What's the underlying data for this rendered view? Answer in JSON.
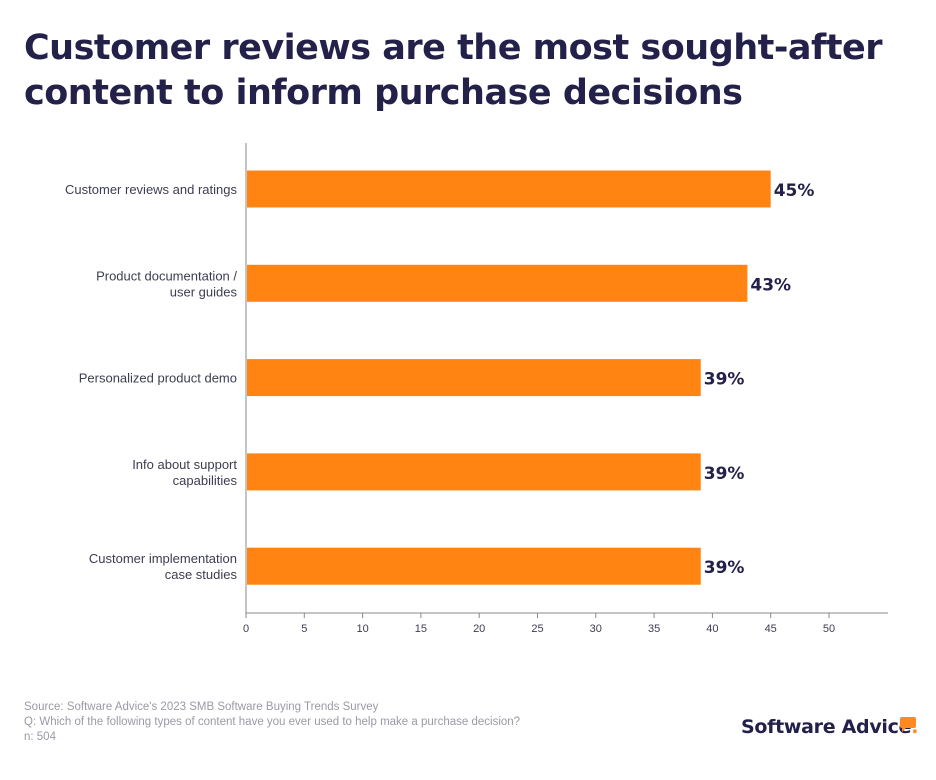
{
  "title_lines": [
    "Customer reviews are the most sought-after",
    "content to inform purchase decisions"
  ],
  "chart_data": {
    "type": "bar",
    "orientation": "horizontal",
    "title": "Customer reviews are the most sought-after content to inform purchase decisions",
    "categories": [
      [
        "Customer reviews and ratings"
      ],
      [
        "Product documentation /",
        "user guides"
      ],
      [
        "Personalized product demo"
      ],
      [
        "Info about support",
        "capabilities"
      ],
      [
        "Customer implementation",
        "case studies"
      ]
    ],
    "values": [
      45,
      43,
      39,
      39,
      39
    ],
    "value_labels": [
      "45%",
      "43%",
      "39%",
      "39%",
      "39%"
    ],
    "xlim": [
      0,
      55
    ],
    "xticks": [
      0,
      5,
      10,
      15,
      20,
      25,
      30,
      35,
      40,
      45,
      50
    ],
    "bar_color": "#ff8411",
    "grid": false
  },
  "footer": {
    "source": "Source: Software Advice's 2023 SMB Software Buying Trends Survey",
    "question": "Q: Which of the following types of content have you ever used to help make a purchase decision?",
    "n": "n: 504"
  },
  "logo": {
    "text": "Software Advice",
    "dot": "."
  },
  "colors": {
    "title": "#23214a",
    "axis": "#888888",
    "label": "#3d3d52"
  }
}
